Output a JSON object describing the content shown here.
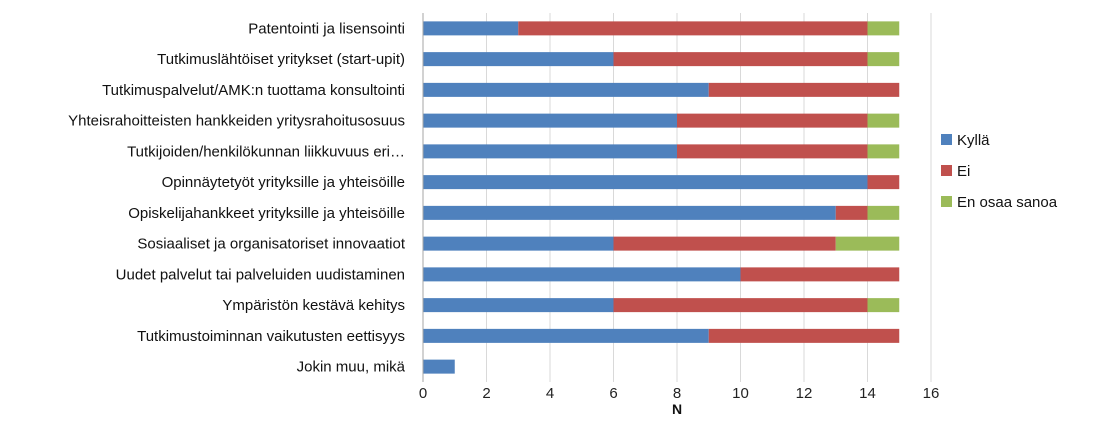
{
  "chart_data": {
    "type": "bar",
    "orientation": "horizontal",
    "stacked": true,
    "categories": [
      "Patentointi ja lisensointi",
      "Tutkimuslähtöiset yritykset (start-upit)",
      "Tutkimuspalvelut/AMK:n tuottama konsultointi",
      "Yhteisrahoitteisten hankkeiden yritysrahoitusosuus",
      "Tutkijoiden/henkilökunnan liikkuvuus eri…",
      "Opinnäytetyöt yrityksille ja yhteisöille",
      "Opiskelijahankkeet yrityksille ja yhteisöille",
      "Sosiaaliset ja organisatoriset innovaatiot",
      "Uudet palvelut tai palveluiden uudistaminen",
      "Ympäristön kestävä kehitys",
      "Tutkimustoiminnan vaikutusten eettisyys",
      "Jokin muu, mikä"
    ],
    "series": [
      {
        "name": "Kyllä",
        "color": "#4F81BD",
        "values": [
          3,
          6,
          9,
          8,
          8,
          14,
          13,
          6,
          10,
          6,
          9,
          1
        ]
      },
      {
        "name": "Ei",
        "color": "#C0504D",
        "values": [
          11,
          8,
          6,
          6,
          6,
          1,
          1,
          7,
          5,
          8,
          6,
          0
        ]
      },
      {
        "name": "En osaa sanoa",
        "color": "#9BBB59",
        "values": [
          1,
          1,
          0,
          1,
          1,
          0,
          1,
          2,
          0,
          1,
          0,
          0
        ]
      }
    ],
    "xlabel": "N",
    "xlim": [
      0,
      16
    ],
    "xticks": [
      0,
      2,
      4,
      6,
      8,
      10,
      12,
      14,
      16
    ],
    "grid": "vertical",
    "legend_position": "right"
  }
}
